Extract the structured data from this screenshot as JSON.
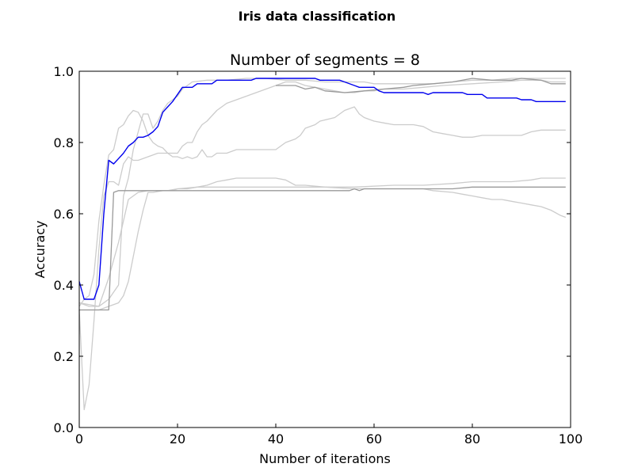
{
  "figure": {
    "suptitle": "Iris data classification"
  },
  "chart_data": {
    "type": "line",
    "title": "Number of segments = 8",
    "xlabel": "Number of iterations",
    "ylabel": "Accuracy",
    "xlim": [
      0,
      100
    ],
    "ylim": [
      0.0,
      1.0
    ],
    "xticks": [
      "0",
      "20",
      "40",
      "60",
      "80",
      "100"
    ],
    "yticks": [
      "0.0",
      "0.2",
      "0.4",
      "0.6",
      "0.8",
      "1.0"
    ],
    "grid": false,
    "highlight_color": "#0000ee",
    "background_series_color": "#cccccc",
    "secondary_series_color": "#999999",
    "series": [
      {
        "color": "#0000ee",
        "highlight": true,
        "points": [
          [
            0,
            0.41
          ],
          [
            1,
            0.36
          ],
          [
            2,
            0.36
          ],
          [
            3,
            0.36
          ],
          [
            4,
            0.4
          ],
          [
            5,
            0.6
          ],
          [
            6,
            0.75
          ],
          [
            7,
            0.74
          ],
          [
            8,
            0.755
          ],
          [
            9,
            0.77
          ],
          [
            10,
            0.79
          ],
          [
            11,
            0.8
          ],
          [
            12,
            0.815
          ],
          [
            13,
            0.815
          ],
          [
            14,
            0.82
          ],
          [
            15,
            0.83
          ],
          [
            16,
            0.845
          ],
          [
            17,
            0.885
          ],
          [
            18,
            0.9
          ],
          [
            19,
            0.915
          ],
          [
            20,
            0.935
          ],
          [
            21,
            0.955
          ],
          [
            22,
            0.955
          ],
          [
            23,
            0.955
          ],
          [
            24,
            0.965
          ],
          [
            25,
            0.965
          ],
          [
            27,
            0.965
          ],
          [
            28,
            0.975
          ],
          [
            35,
            0.975
          ],
          [
            36,
            0.98
          ],
          [
            48,
            0.98
          ],
          [
            49,
            0.975
          ],
          [
            53,
            0.975
          ],
          [
            54,
            0.97
          ],
          [
            56,
            0.96
          ],
          [
            57,
            0.955
          ],
          [
            60,
            0.955
          ],
          [
            61,
            0.945
          ],
          [
            62,
            0.94
          ],
          [
            70,
            0.94
          ],
          [
            71,
            0.935
          ],
          [
            72,
            0.94
          ],
          [
            78,
            0.94
          ],
          [
            79,
            0.935
          ],
          [
            82,
            0.935
          ],
          [
            83,
            0.925
          ],
          [
            89,
            0.925
          ],
          [
            90,
            0.92
          ],
          [
            92,
            0.92
          ],
          [
            93,
            0.915
          ],
          [
            99,
            0.915
          ]
        ]
      },
      {
        "color": "#cccccc",
        "points": [
          [
            0,
            0.33
          ],
          [
            1,
            0.05
          ],
          [
            2,
            0.12
          ],
          [
            3,
            0.3
          ],
          [
            4,
            0.5
          ],
          [
            5,
            0.65
          ],
          [
            6,
            0.69
          ],
          [
            7,
            0.69
          ],
          [
            8,
            0.68
          ],
          [
            9,
            0.74
          ],
          [
            10,
            0.76
          ],
          [
            11,
            0.75
          ],
          [
            12,
            0.75
          ],
          [
            14,
            0.76
          ],
          [
            16,
            0.77
          ],
          [
            18,
            0.77
          ],
          [
            20,
            0.77
          ],
          [
            21,
            0.79
          ],
          [
            22,
            0.8
          ],
          [
            23,
            0.8
          ],
          [
            24,
            0.83
          ],
          [
            25,
            0.85
          ],
          [
            26,
            0.86
          ],
          [
            28,
            0.89
          ],
          [
            30,
            0.91
          ],
          [
            32,
            0.92
          ],
          [
            34,
            0.93
          ],
          [
            36,
            0.94
          ],
          [
            38,
            0.95
          ],
          [
            40,
            0.96
          ],
          [
            42,
            0.97
          ],
          [
            44,
            0.97
          ],
          [
            46,
            0.96
          ],
          [
            48,
            0.955
          ],
          [
            50,
            0.95
          ],
          [
            52,
            0.945
          ],
          [
            54,
            0.94
          ],
          [
            56,
            0.94
          ],
          [
            58,
            0.945
          ],
          [
            60,
            0.945
          ],
          [
            62,
            0.95
          ],
          [
            66,
            0.95
          ],
          [
            70,
            0.955
          ],
          [
            74,
            0.96
          ],
          [
            80,
            0.965
          ],
          [
            86,
            0.97
          ],
          [
            90,
            0.975
          ],
          [
            94,
            0.975
          ],
          [
            96,
            0.97
          ],
          [
            99,
            0.97
          ]
        ]
      },
      {
        "color": "#cccccc",
        "points": [
          [
            0,
            0.34
          ],
          [
            1,
            0.36
          ],
          [
            2,
            0.37
          ],
          [
            3,
            0.43
          ],
          [
            4,
            0.58
          ],
          [
            5,
            0.68
          ],
          [
            6,
            0.765
          ],
          [
            7,
            0.78
          ],
          [
            8,
            0.84
          ],
          [
            9,
            0.85
          ],
          [
            10,
            0.875
          ],
          [
            11,
            0.89
          ],
          [
            12,
            0.885
          ],
          [
            13,
            0.86
          ],
          [
            14,
            0.82
          ],
          [
            15,
            0.8
          ],
          [
            16,
            0.79
          ],
          [
            17,
            0.785
          ],
          [
            18,
            0.77
          ],
          [
            19,
            0.76
          ],
          [
            20,
            0.76
          ],
          [
            21,
            0.755
          ],
          [
            22,
            0.76
          ],
          [
            23,
            0.755
          ],
          [
            24,
            0.76
          ],
          [
            25,
            0.78
          ],
          [
            26,
            0.76
          ],
          [
            27,
            0.76
          ],
          [
            28,
            0.77
          ],
          [
            30,
            0.77
          ],
          [
            32,
            0.78
          ],
          [
            40,
            0.78
          ],
          [
            42,
            0.8
          ],
          [
            44,
            0.81
          ],
          [
            45,
            0.82
          ],
          [
            46,
            0.84
          ],
          [
            48,
            0.85
          ],
          [
            49,
            0.86
          ],
          [
            52,
            0.87
          ],
          [
            54,
            0.89
          ],
          [
            56,
            0.9
          ],
          [
            57,
            0.88
          ],
          [
            58,
            0.87
          ],
          [
            60,
            0.86
          ],
          [
            62,
            0.855
          ],
          [
            64,
            0.85
          ],
          [
            66,
            0.85
          ],
          [
            68,
            0.85
          ],
          [
            70,
            0.845
          ],
          [
            72,
            0.83
          ],
          [
            74,
            0.825
          ],
          [
            76,
            0.82
          ],
          [
            78,
            0.815
          ],
          [
            80,
            0.815
          ],
          [
            82,
            0.82
          ],
          [
            86,
            0.82
          ],
          [
            90,
            0.82
          ],
          [
            92,
            0.83
          ],
          [
            94,
            0.835
          ],
          [
            99,
            0.835
          ]
        ]
      },
      {
        "color": "#cccccc",
        "points": [
          [
            0,
            0.35
          ],
          [
            2,
            0.34
          ],
          [
            4,
            0.34
          ],
          [
            6,
            0.42
          ],
          [
            8,
            0.52
          ],
          [
            10,
            0.64
          ],
          [
            12,
            0.66
          ],
          [
            14,
            0.665
          ],
          [
            16,
            0.665
          ],
          [
            18,
            0.665
          ],
          [
            20,
            0.67
          ],
          [
            22,
            0.67
          ],
          [
            24,
            0.675
          ],
          [
            26,
            0.68
          ],
          [
            28,
            0.69
          ],
          [
            30,
            0.695
          ],
          [
            32,
            0.7
          ],
          [
            36,
            0.7
          ],
          [
            40,
            0.7
          ],
          [
            42,
            0.695
          ],
          [
            44,
            0.68
          ],
          [
            46,
            0.68
          ],
          [
            50,
            0.675
          ],
          [
            56,
            0.67
          ],
          [
            60,
            0.67
          ],
          [
            66,
            0.67
          ],
          [
            70,
            0.67
          ],
          [
            72,
            0.665
          ],
          [
            76,
            0.66
          ],
          [
            78,
            0.655
          ],
          [
            80,
            0.65
          ],
          [
            82,
            0.645
          ],
          [
            84,
            0.64
          ],
          [
            86,
            0.64
          ],
          [
            88,
            0.635
          ],
          [
            90,
            0.63
          ],
          [
            92,
            0.625
          ],
          [
            94,
            0.62
          ],
          [
            96,
            0.61
          ],
          [
            98,
            0.595
          ],
          [
            99,
            0.59
          ]
        ]
      },
      {
        "color": "#cccccc",
        "points": [
          [
            0,
            0.33
          ],
          [
            4,
            0.33
          ],
          [
            6,
            0.34
          ],
          [
            8,
            0.35
          ],
          [
            9,
            0.37
          ],
          [
            10,
            0.41
          ],
          [
            11,
            0.48
          ],
          [
            12,
            0.55
          ],
          [
            13,
            0.61
          ],
          [
            14,
            0.66
          ],
          [
            15,
            0.66
          ],
          [
            17,
            0.665
          ],
          [
            19,
            0.665
          ],
          [
            20,
            0.67
          ],
          [
            24,
            0.675
          ],
          [
            28,
            0.675
          ],
          [
            32,
            0.675
          ],
          [
            36,
            0.675
          ],
          [
            44,
            0.675
          ],
          [
            56,
            0.675
          ],
          [
            64,
            0.68
          ],
          [
            70,
            0.68
          ],
          [
            76,
            0.685
          ],
          [
            80,
            0.69
          ],
          [
            84,
            0.69
          ],
          [
            88,
            0.69
          ],
          [
            92,
            0.695
          ],
          [
            94,
            0.7
          ],
          [
            99,
            0.7
          ]
        ]
      },
      {
        "color": "#cccccc",
        "points": [
          [
            0,
            0.35
          ],
          [
            4,
            0.34
          ],
          [
            6,
            0.36
          ],
          [
            8,
            0.4
          ],
          [
            9,
            0.65
          ],
          [
            10,
            0.7
          ],
          [
            11,
            0.78
          ],
          [
            12,
            0.83
          ],
          [
            13,
            0.88
          ],
          [
            14,
            0.88
          ],
          [
            15,
            0.84
          ],
          [
            16,
            0.86
          ],
          [
            17,
            0.89
          ],
          [
            18,
            0.91
          ],
          [
            19,
            0.92
          ],
          [
            20,
            0.93
          ],
          [
            21,
            0.95
          ],
          [
            22,
            0.96
          ],
          [
            23,
            0.97
          ],
          [
            26,
            0.975
          ],
          [
            30,
            0.975
          ],
          [
            34,
            0.98
          ],
          [
            38,
            0.98
          ],
          [
            42,
            0.975
          ],
          [
            46,
            0.975
          ],
          [
            50,
            0.97
          ],
          [
            54,
            0.97
          ],
          [
            58,
            0.97
          ],
          [
            60,
            0.965
          ],
          [
            64,
            0.965
          ],
          [
            68,
            0.965
          ],
          [
            72,
            0.965
          ],
          [
            76,
            0.97
          ],
          [
            80,
            0.975
          ],
          [
            84,
            0.975
          ],
          [
            88,
            0.98
          ],
          [
            92,
            0.98
          ],
          [
            96,
            0.98
          ],
          [
            99,
            0.98
          ]
        ]
      },
      {
        "color": "#999999",
        "points": [
          [
            0,
            0.33
          ],
          [
            6,
            0.33
          ],
          [
            7,
            0.66
          ],
          [
            8,
            0.665
          ],
          [
            20,
            0.665
          ],
          [
            40,
            0.665
          ],
          [
            55,
            0.665
          ],
          [
            56,
            0.67
          ],
          [
            57,
            0.665
          ],
          [
            58,
            0.67
          ],
          [
            70,
            0.67
          ],
          [
            76,
            0.67
          ],
          [
            80,
            0.675
          ],
          [
            99,
            0.675
          ]
        ]
      },
      {
        "color": "#999999",
        "points": [
          [
            40,
            0.96
          ],
          [
            44,
            0.96
          ],
          [
            46,
            0.95
          ],
          [
            48,
            0.955
          ],
          [
            50,
            0.945
          ],
          [
            54,
            0.94
          ],
          [
            58,
            0.945
          ],
          [
            62,
            0.95
          ],
          [
            66,
            0.955
          ],
          [
            68,
            0.96
          ],
          [
            72,
            0.965
          ],
          [
            76,
            0.97
          ],
          [
            80,
            0.98
          ],
          [
            84,
            0.975
          ],
          [
            88,
            0.975
          ],
          [
            90,
            0.98
          ],
          [
            94,
            0.975
          ],
          [
            96,
            0.965
          ],
          [
            99,
            0.965
          ]
        ]
      }
    ]
  }
}
